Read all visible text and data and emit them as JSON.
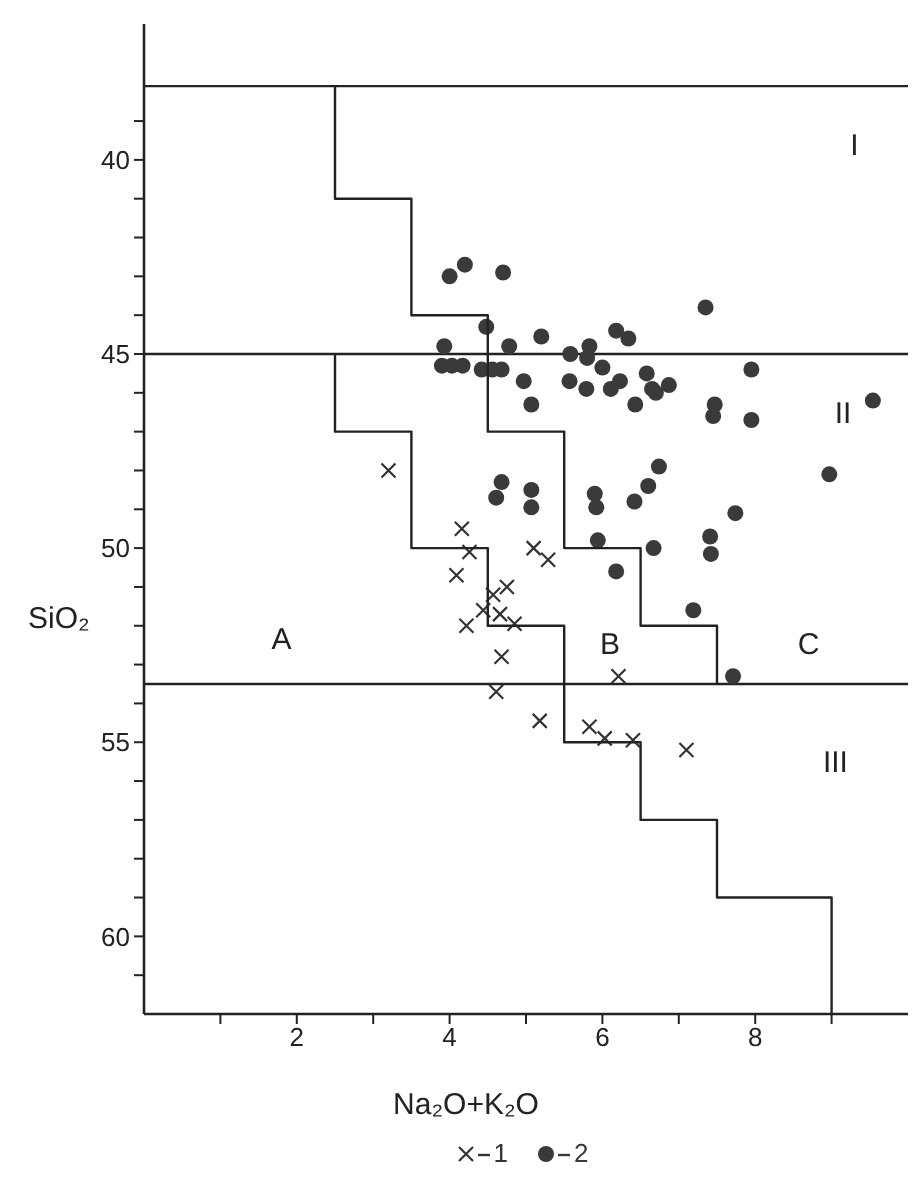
{
  "chart_data": {
    "type": "scatter",
    "xlabel": "Na₂O+K₂O",
    "ylabel": "SiO₂",
    "xlim": [
      0,
      10
    ],
    "ylim": [
      62,
      36.5
    ],
    "xticks": [
      {
        "value": 1,
        "label": null
      },
      2,
      {
        "value": 3,
        "label": null
      },
      4,
      {
        "value": 5,
        "label": null
      },
      6,
      {
        "value": 7,
        "label": null
      },
      8,
      {
        "value": 9,
        "label": null
      }
    ],
    "yticks": [
      {
        "value": 39,
        "label": null
      },
      40,
      {
        "value": 41,
        "label": null
      },
      {
        "value": 42,
        "label": null
      },
      {
        "value": 43,
        "label": null
      },
      {
        "value": 44,
        "label": null
      },
      45,
      {
        "value": 46,
        "label": null
      },
      {
        "value": 47,
        "label": null
      },
      {
        "value": 48,
        "label": null
      },
      {
        "value": 49,
        "label": null
      },
      50,
      {
        "value": 51,
        "label": null
      },
      {
        "value": 52,
        "label": null
      },
      {
        "value": 53,
        "label": null
      },
      {
        "value": 54,
        "label": null
      },
      55,
      {
        "value": 56,
        "label": null
      },
      {
        "value": 57,
        "label": null
      },
      {
        "value": 58,
        "label": null
      },
      {
        "value": 59,
        "label": null
      },
      60,
      {
        "value": 61,
        "label": null
      }
    ],
    "grid": false,
    "legend": "bottom",
    "ref_lines": [
      {
        "axis": "y",
        "value": 38.1,
        "color": "#222222"
      },
      {
        "axis": "y",
        "value": 45,
        "color": "#222222"
      },
      {
        "axis": "y",
        "value": 53.5,
        "color": "#222222"
      }
    ],
    "annotations": [
      "I",
      "II",
      "III",
      "A",
      "B",
      "C"
    ],
    "series": [
      {
        "name": "1",
        "marker": "cross",
        "color": "#333333",
        "x": [
          3.2,
          4.16,
          4.26,
          4.09,
          5.1,
          5.29,
          4.75,
          4.57,
          4.44,
          4.66,
          4.22,
          4.85,
          4.68,
          4.61,
          6.21,
          5.18,
          5.83,
          6.03,
          6.4,
          7.1
        ],
        "values": [
          48,
          49.5,
          50.1,
          50.7,
          50,
          50.3,
          51,
          51.2,
          51.6,
          51.7,
          52,
          51.95,
          52.8,
          53.7,
          53.3,
          54.45,
          54.6,
          54.9,
          54.95,
          55.2
        ]
      },
      {
        "name": "2",
        "marker": "circle",
        "color": "#3a3a3a",
        "x": [
          4,
          4.2,
          4.7,
          7.35,
          4.48,
          5.2,
          6.18,
          6.34,
          3.93,
          4.78,
          5.58,
          5.83,
          5.8,
          3.9,
          4.03,
          4.17,
          4.42,
          4.56,
          4.68,
          4.97,
          5.57,
          6,
          5.79,
          6.23,
          6.11,
          6.58,
          6.65,
          6.7,
          6.87,
          6.43,
          5.07,
          7.95,
          7.47,
          7.45,
          7.95,
          9.54,
          6.74,
          8.97,
          4.68,
          4.61,
          5.07,
          5.07,
          5.9,
          5.92,
          6.42,
          6.6,
          7.74,
          5.94,
          7.41,
          7.42,
          6.67,
          6.18,
          7.19,
          7.71
        ],
        "values": [
          43,
          42.7,
          42.9,
          43.8,
          44.3,
          44.55,
          44.4,
          44.6,
          44.8,
          44.8,
          45,
          44.8,
          45.1,
          45.3,
          45.3,
          45.3,
          45.4,
          45.4,
          45.4,
          45.7,
          45.7,
          45.35,
          45.9,
          45.7,
          45.9,
          45.5,
          45.9,
          46,
          45.8,
          46.3,
          46.3,
          45.4,
          46.3,
          46.6,
          46.7,
          46.2,
          47.9,
          48.1,
          48.3,
          48.7,
          48.5,
          48.95,
          48.6,
          48.95,
          48.8,
          48.4,
          49.1,
          49.8,
          49.7,
          50.15,
          50,
          50.6,
          51.6,
          53.3
        ]
      },
      {
        "type": "line",
        "marker": "none",
        "color": "#222222",
        "x": [
          2.5,
          2.5,
          3.5,
          3.5,
          4.5,
          4.5,
          5.5,
          5.5,
          6.5,
          6.5,
          7.5,
          7.5
        ],
        "values": [
          38.1,
          41,
          41,
          44,
          44,
          47,
          47,
          50,
          50,
          52,
          52,
          53.5
        ]
      },
      {
        "type": "line",
        "marker": "none",
        "color": "#222222",
        "x": [
          2.5,
          2.5,
          3.5,
          3.5,
          4.5,
          4.5,
          5.5,
          5.5,
          6.5,
          6.5,
          7.5,
          7.5,
          9,
          9
        ],
        "values": [
          45,
          47,
          47,
          50,
          50,
          52,
          52,
          55,
          55,
          57,
          57,
          59,
          59,
          62
        ]
      }
    ]
  }
}
